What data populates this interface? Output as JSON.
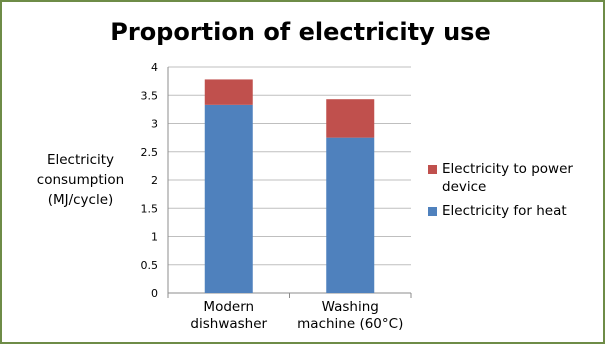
{
  "chart_data": {
    "type": "bar",
    "stacked": true,
    "title": "Proportion of electricity use",
    "ylabel_lines": [
      "Electricity",
      "consumption",
      "(MJ/cycle)"
    ],
    "xlabel": "",
    "ylim": [
      0,
      4
    ],
    "yticks": [
      "0",
      "0.5",
      "1",
      "1.5",
      "2",
      "2.5",
      "3",
      "3.5",
      "4"
    ],
    "grid": true,
    "legend_position": "right",
    "categories": [
      [
        "Modern",
        "dishwasher"
      ],
      [
        "Washing",
        "machine (60°C)"
      ]
    ],
    "series": [
      {
        "name": "Electricity for heat",
        "color": "#4f81bd",
        "values": [
          3.33,
          2.75
        ]
      },
      {
        "name": "Electricity to power device",
        "color": "#c0504d",
        "values": [
          0.45,
          0.68
        ]
      }
    ],
    "legend": [
      {
        "label_lines": [
          "Electricity to power",
          "device"
        ],
        "color": "#c0504d"
      },
      {
        "label_lines": [
          "Electricity for heat"
        ],
        "color": "#4f81bd"
      }
    ]
  }
}
